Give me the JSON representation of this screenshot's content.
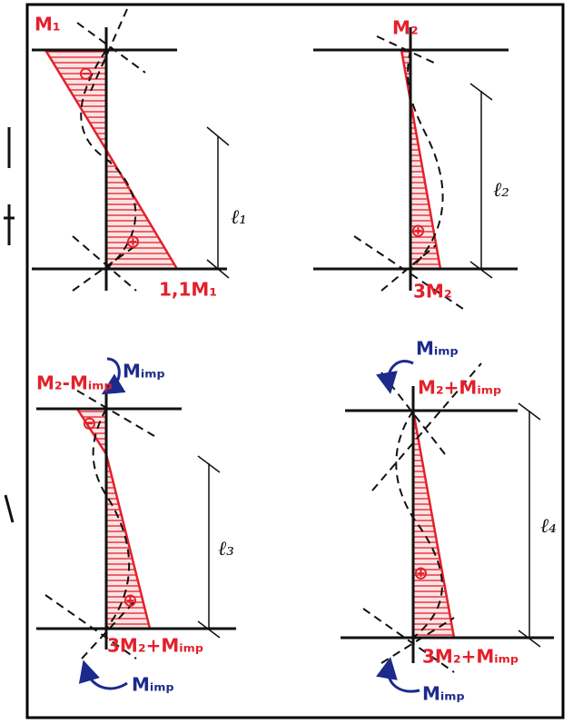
{
  "panels": [
    {
      "top_moment": "M₁",
      "top_sign": "⊖",
      "bottom_sign": "⊕",
      "length": "ℓ₁",
      "bottom_moment": "1,1M₁"
    },
    {
      "top_moment": "M₂",
      "sign": "⊕",
      "length": "ℓ₂",
      "bottom_moment": "3M₂"
    },
    {
      "top_applied": "Mᵢₘₚ",
      "top_moment": "M₂-Mᵢₘₚ",
      "top_sign": "⊖",
      "bottom_sign": "⊕",
      "length": "ℓ₃",
      "bottom_moment": "3M₂+Mᵢₘₚ",
      "bottom_applied": "Mᵢₘₚ"
    },
    {
      "top_applied": "Mᵢₘₚ",
      "top_moment": "M₂+Mᵢₘₚ",
      "sign": "⊕",
      "length": "ℓ₄",
      "bottom_moment": "3M₂+Mᵢₘₚ",
      "bottom_applied": "Mᵢₘₚ"
    }
  ]
}
